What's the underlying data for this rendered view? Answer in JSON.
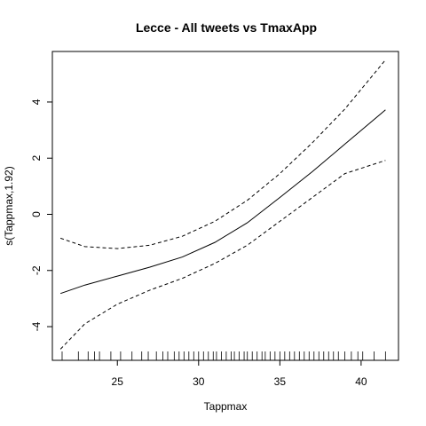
{
  "chart_data": {
    "type": "line",
    "title": "Lecce - All tweets vs TmaxApp",
    "xlabel": "Tappmax",
    "ylabel": "s(Tappmax,1.92)",
    "xlim": [
      21,
      42.3
    ],
    "ylim": [
      -5.2,
      5.8
    ],
    "x_ticks": [
      25,
      30,
      35,
      40
    ],
    "y_ticks": [
      -4,
      -2,
      0,
      2,
      4
    ],
    "grid": false,
    "series": [
      {
        "style": "solid",
        "x": [
          21.5,
          23,
          25,
          27,
          29,
          31,
          33,
          35,
          37,
          39,
          41.5
        ],
        "y": [
          -2.82,
          -2.52,
          -2.2,
          -1.88,
          -1.52,
          -1.0,
          -0.3,
          0.6,
          1.52,
          2.5,
          3.72
        ]
      },
      {
        "style": "dashed",
        "x": [
          21.5,
          23,
          25,
          27,
          29,
          31,
          33,
          35,
          37,
          39,
          41.5
        ],
        "y": [
          -0.85,
          -1.15,
          -1.22,
          -1.1,
          -0.78,
          -0.25,
          0.5,
          1.45,
          2.55,
          3.75,
          5.5
        ]
      },
      {
        "style": "dashed",
        "x": [
          21.5,
          23,
          25,
          27,
          29,
          31,
          33,
          35,
          37,
          39,
          41.5
        ],
        "y": [
          -4.8,
          -3.9,
          -3.2,
          -2.7,
          -2.28,
          -1.75,
          -1.1,
          -0.25,
          0.6,
          1.45,
          1.92
        ]
      }
    ],
    "rug": [
      21.6,
      22.6,
      23.2,
      23.6,
      23.9,
      24.6,
      25.2,
      25.9,
      26.5,
      26.9,
      27.4,
      27.8,
      28.1,
      28.5,
      28.8,
      29.1,
      29.4,
      29.7,
      30.0,
      30.3,
      30.6,
      30.9,
      31.1,
      31.4,
      31.7,
      32.0,
      32.2,
      32.5,
      32.8,
      33.0,
      33.3,
      33.6,
      33.9,
      34.1,
      34.4,
      34.7,
      35.0,
      35.3,
      35.6,
      35.9,
      36.2,
      36.5,
      36.8,
      37.1,
      37.4,
      37.7,
      38.0,
      38.3,
      38.6,
      39.0,
      39.4,
      39.8,
      40.1,
      40.8,
      41.5
    ]
  }
}
